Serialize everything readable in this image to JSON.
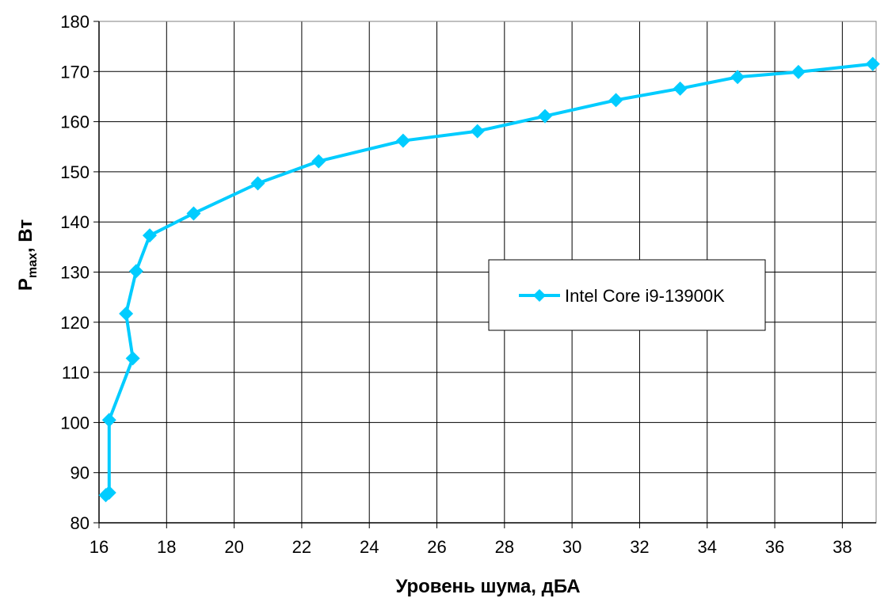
{
  "chart_data": {
    "type": "line",
    "xlabel": "Уровень шума, дБА",
    "ylabel_main": "P",
    "ylabel_sub": "max",
    "ylabel_unit": ", Вт",
    "xlim": [
      16,
      39
    ],
    "ylim": [
      80,
      180
    ],
    "xticks": [
      16,
      18,
      20,
      22,
      24,
      26,
      28,
      30,
      32,
      34,
      36,
      38
    ],
    "yticks": [
      80,
      90,
      100,
      110,
      120,
      130,
      140,
      150,
      160,
      170,
      180
    ],
    "grid": true,
    "legend_position": "center-right",
    "series": [
      {
        "name": "Intel Core i9-13900K",
        "color": "#00CCFF",
        "marker": "diamond",
        "x": [
          16.2,
          16.3,
          16.3,
          17.0,
          16.8,
          17.1,
          17.5,
          18.8,
          20.7,
          22.5,
          25.0,
          27.2,
          29.2,
          31.3,
          33.2,
          34.9,
          36.7,
          38.9
        ],
        "y": [
          85.5,
          86.0,
          100.5,
          112.8,
          121.7,
          130.2,
          137.3,
          141.7,
          147.7,
          152.1,
          156.2,
          158.1,
          161.1,
          164.3,
          166.6,
          168.9,
          169.9,
          171.5
        ]
      }
    ]
  }
}
